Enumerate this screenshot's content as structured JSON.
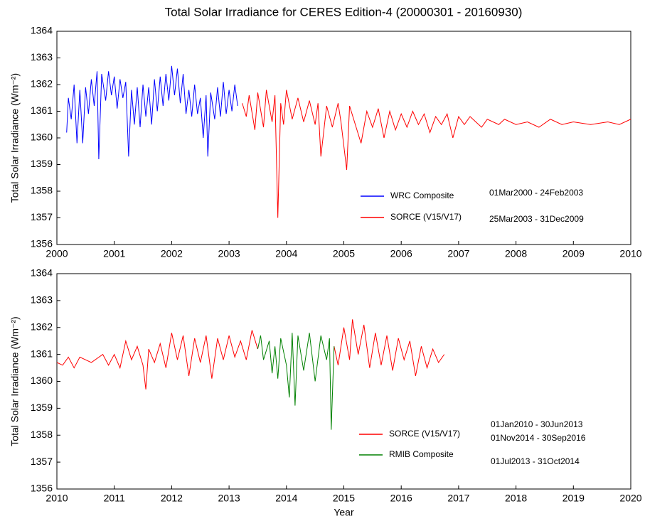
{
  "chart_data": [
    {
      "type": "line",
      "title": "Total Solar Irradiance for CERES Edition-4 (20000301 - 20160930)",
      "ylabel": "Total Solar Irradiance (Wm⁻²)",
      "xlim": [
        2000,
        2010
      ],
      "xticks": [
        2000,
        2001,
        2002,
        2003,
        2004,
        2005,
        2006,
        2007,
        2008,
        2009,
        2010
      ],
      "ylim": [
        1356,
        1364
      ],
      "yticks": [
        1356,
        1357,
        1358,
        1359,
        1360,
        1361,
        1362,
        1363,
        1364
      ],
      "annotations": [
        "01Mar2000 - 24Feb2003",
        "25Mar2003 - 31Dec2009"
      ],
      "series": [
        {
          "name": "WRC Composite",
          "color": "#0000ff",
          "x": [
            2000.17,
            2000.2,
            2000.25,
            2000.3,
            2000.35,
            2000.4,
            2000.45,
            2000.5,
            2000.55,
            2000.6,
            2000.65,
            2000.7,
            2000.73,
            2000.78,
            2000.85,
            2000.9,
            2000.95,
            2001.0,
            2001.05,
            2001.1,
            2001.15,
            2001.2,
            2001.25,
            2001.3,
            2001.35,
            2001.4,
            2001.45,
            2001.5,
            2001.55,
            2001.6,
            2001.65,
            2001.7,
            2001.75,
            2001.8,
            2001.85,
            2001.9,
            2001.95,
            2002.0,
            2002.05,
            2002.1,
            2002.15,
            2002.2,
            2002.25,
            2002.3,
            2002.35,
            2002.4,
            2002.45,
            2002.5,
            2002.55,
            2002.6,
            2002.63,
            2002.68,
            2002.75,
            2002.8,
            2002.85,
            2002.9,
            2002.95,
            2003.0,
            2003.05,
            2003.1,
            2003.15
          ],
          "values": [
            1360.2,
            1361.5,
            1360.7,
            1362.0,
            1359.8,
            1361.8,
            1359.8,
            1361.9,
            1360.9,
            1362.2,
            1361.2,
            1362.5,
            1359.2,
            1362.4,
            1361.4,
            1362.5,
            1361.6,
            1362.3,
            1361.1,
            1362.2,
            1361.5,
            1362.1,
            1359.3,
            1361.8,
            1360.5,
            1361.9,
            1360.4,
            1362.0,
            1360.8,
            1361.9,
            1360.5,
            1362.2,
            1361.0,
            1362.3,
            1361.2,
            1362.4,
            1361.4,
            1362.7,
            1361.6,
            1362.6,
            1361.3,
            1362.4,
            1360.9,
            1361.8,
            1360.8,
            1362.0,
            1360.9,
            1361.5,
            1360.0,
            1361.6,
            1359.3,
            1361.7,
            1360.7,
            1361.9,
            1360.8,
            1362.1,
            1360.9,
            1361.8,
            1361.0,
            1362.0,
            1361.2
          ]
        },
        {
          "name": "SORCE (V15/V17)",
          "color": "#ff0000",
          "x": [
            2003.23,
            2003.3,
            2003.35,
            2003.45,
            2003.5,
            2003.6,
            2003.65,
            2003.75,
            2003.8,
            2003.85,
            2003.9,
            2003.95,
            2004.0,
            2004.1,
            2004.2,
            2004.3,
            2004.4,
            2004.5,
            2004.55,
            2004.6,
            2004.7,
            2004.8,
            2004.9,
            2004.95,
            2005.05,
            2005.1,
            2005.2,
            2005.3,
            2005.4,
            2005.5,
            2005.6,
            2005.7,
            2005.8,
            2005.9,
            2006.0,
            2006.1,
            2006.2,
            2006.3,
            2006.4,
            2006.5,
            2006.6,
            2006.7,
            2006.8,
            2006.9,
            2007.0,
            2007.1,
            2007.2,
            2007.4,
            2007.5,
            2007.7,
            2007.8,
            2008.0,
            2008.2,
            2008.4,
            2008.6,
            2008.8,
            2009.0,
            2009.3,
            2009.6,
            2009.8,
            2010.0
          ],
          "values": [
            1361.3,
            1360.8,
            1361.6,
            1360.3,
            1361.7,
            1360.4,
            1361.8,
            1360.6,
            1361.6,
            1357.0,
            1361.3,
            1360.5,
            1361.8,
            1360.7,
            1361.5,
            1360.6,
            1361.4,
            1360.5,
            1361.3,
            1359.3,
            1361.2,
            1360.4,
            1361.3,
            1360.6,
            1358.8,
            1361.2,
            1360.5,
            1359.8,
            1361.0,
            1360.4,
            1361.1,
            1360.0,
            1361.0,
            1360.3,
            1360.9,
            1360.4,
            1361.0,
            1360.5,
            1360.9,
            1360.2,
            1360.8,
            1360.5,
            1360.9,
            1360.0,
            1360.8,
            1360.5,
            1360.8,
            1360.4,
            1360.7,
            1360.5,
            1360.7,
            1360.5,
            1360.6,
            1360.4,
            1360.7,
            1360.5,
            1360.6,
            1360.5,
            1360.6,
            1360.5,
            1360.7
          ]
        }
      ]
    },
    {
      "type": "line",
      "xlabel": "Year",
      "ylabel": "Total Solar Irradiance (Wm⁻²)",
      "xlim": [
        2010,
        2020
      ],
      "xticks": [
        2010,
        2011,
        2012,
        2013,
        2014,
        2015,
        2016,
        2017,
        2018,
        2019,
        2020
      ],
      "ylim": [
        1356,
        1364
      ],
      "yticks": [
        1356,
        1357,
        1358,
        1359,
        1360,
        1361,
        1362,
        1363,
        1364
      ],
      "annotations": [
        "01Jan2010 - 30Jun2013",
        "01Nov2014 - 30Sep2016",
        "01Jul2013 - 31Oct2014"
      ],
      "series": [
        {
          "name": "SORCE (V15/V17)",
          "color": "#ff0000",
          "x": [
            2010.0,
            2010.1,
            2010.2,
            2010.3,
            2010.4,
            2010.6,
            2010.8,
            2010.9,
            2011.0,
            2011.1,
            2011.2,
            2011.3,
            2011.4,
            2011.5,
            2011.55,
            2011.6,
            2011.7,
            2011.8,
            2011.9,
            2012.0,
            2012.1,
            2012.2,
            2012.3,
            2012.4,
            2012.5,
            2012.6,
            2012.7,
            2012.8,
            2012.9,
            2013.0,
            2013.1,
            2013.2,
            2013.3,
            2013.4,
            2013.5,
            2014.2,
            2014.83,
            2014.9,
            2015.0,
            2015.1,
            2015.15,
            2015.25,
            2015.35,
            2015.45,
            2015.55,
            2015.65,
            2015.75,
            2015.85,
            2015.95,
            2016.05,
            2016.15,
            2016.25,
            2016.35,
            2016.45,
            2016.55,
            2016.65,
            2016.75
          ],
          "values": [
            1360.7,
            1360.6,
            1360.9,
            1360.5,
            1360.9,
            1360.7,
            1361.0,
            1360.6,
            1361.0,
            1360.5,
            1361.5,
            1360.8,
            1361.3,
            1360.6,
            1359.7,
            1361.2,
            1360.7,
            1361.4,
            1360.5,
            1361.8,
            1360.8,
            1361.7,
            1360.2,
            1361.6,
            1360.7,
            1361.7,
            1360.1,
            1361.6,
            1360.8,
            1361.7,
            1360.9,
            1361.5,
            1360.8,
            1361.9,
            1361.2,
            null,
            1361.3,
            1360.6,
            1362.0,
            1360.8,
            1362.3,
            1361.0,
            1362.1,
            1360.5,
            1361.8,
            1360.6,
            1361.7,
            1360.4,
            1361.6,
            1360.8,
            1361.5,
            1360.2,
            1361.3,
            1360.5,
            1361.2,
            1360.7,
            1361.0
          ]
        },
        {
          "name": "RMIB Composite",
          "color": "#008000",
          "x": [
            2013.5,
            2013.55,
            2013.6,
            2013.7,
            2013.75,
            2013.8,
            2013.85,
            2013.9,
            2014.0,
            2014.05,
            2014.1,
            2014.15,
            2014.2,
            2014.3,
            2014.4,
            2014.5,
            2014.6,
            2014.7,
            2014.75,
            2014.78,
            2014.83
          ],
          "values": [
            1361.2,
            1361.7,
            1360.8,
            1361.5,
            1360.3,
            1361.3,
            1360.1,
            1361.6,
            1360.6,
            1359.4,
            1361.8,
            1359.1,
            1361.7,
            1360.4,
            1361.8,
            1360.0,
            1361.7,
            1360.8,
            1361.6,
            1358.2,
            1361.3
          ]
        }
      ]
    }
  ]
}
